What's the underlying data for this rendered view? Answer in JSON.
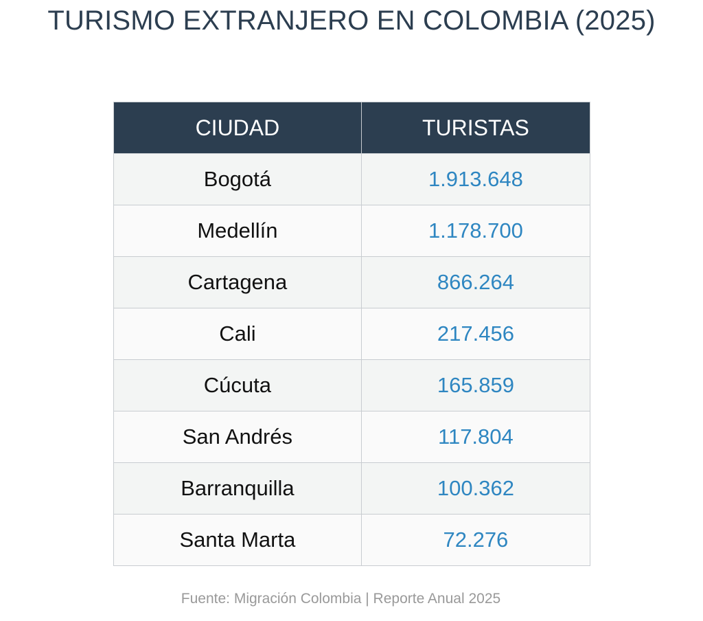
{
  "title": "TURISMO EXTRANJERO EN COLOMBIA (2025)",
  "footer": "Fuente: Migración Colombia | Reporte Anual 2025",
  "chart_data": {
    "type": "table",
    "title": "TURISMO EXTRANJERO EN COLOMBIA (2025)",
    "columns": [
      "CIUDAD",
      "TURISTAS"
    ],
    "rows": [
      {
        "city": "Bogotá",
        "value": "1.913.648"
      },
      {
        "city": "Medellín",
        "value": "1.178.700"
      },
      {
        "city": "Cartagena",
        "value": "866.264"
      },
      {
        "city": "Cali",
        "value": "217.456"
      },
      {
        "city": "Cúcuta",
        "value": "165.859"
      },
      {
        "city": "San Andrés",
        "value": "117.804"
      },
      {
        "city": "Barranquilla",
        "value": "100.362"
      },
      {
        "city": "Santa Marta",
        "value": "72.276"
      }
    ]
  },
  "colors": {
    "header_bg": "#2c3e50",
    "value_text": "#2e86c1"
  }
}
